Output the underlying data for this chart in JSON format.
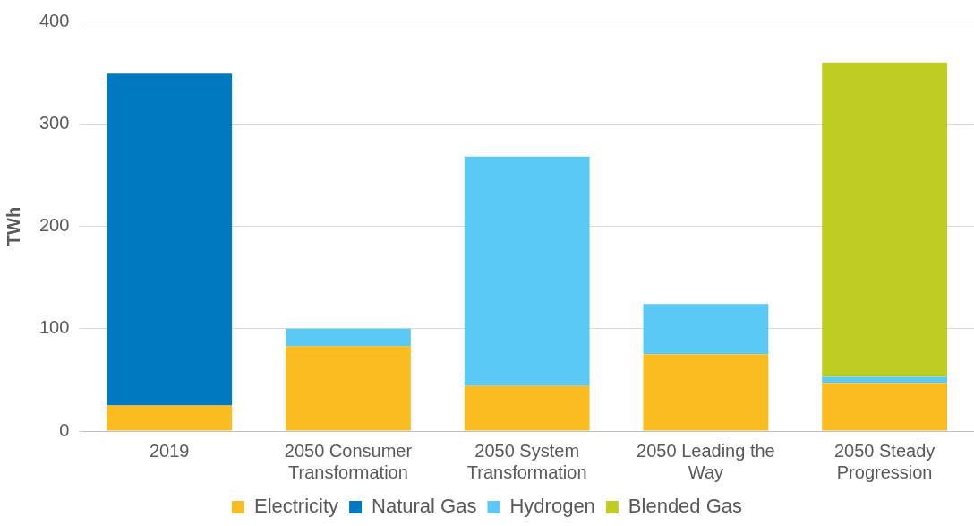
{
  "chart_data": {
    "type": "bar",
    "stacked": true,
    "ylabel": "TWh",
    "categories": [
      "2019",
      "2050 Consumer Transformation",
      "2050 System Transformation",
      "2050 Leading the Way",
      "2050 Steady Progression"
    ],
    "series": [
      {
        "name": "Electricity",
        "color": "#fbbc22",
        "values": [
          25,
          83,
          44,
          75,
          47
        ]
      },
      {
        "name": "Natural Gas",
        "color": "#0079c1",
        "values": [
          324,
          0,
          0,
          0,
          0
        ]
      },
      {
        "name": "Hydrogen",
        "color": "#5bc9f5",
        "values": [
          0,
          17,
          224,
          49,
          6
        ]
      },
      {
        "name": "Blended Gas",
        "color": "#bfcd22",
        "values": [
          0,
          0,
          0,
          0,
          307
        ]
      }
    ],
    "ylim": [
      0,
      400
    ],
    "yticks": [
      0,
      100,
      200,
      300,
      400
    ],
    "grid": "y",
    "legend": "bottom"
  }
}
